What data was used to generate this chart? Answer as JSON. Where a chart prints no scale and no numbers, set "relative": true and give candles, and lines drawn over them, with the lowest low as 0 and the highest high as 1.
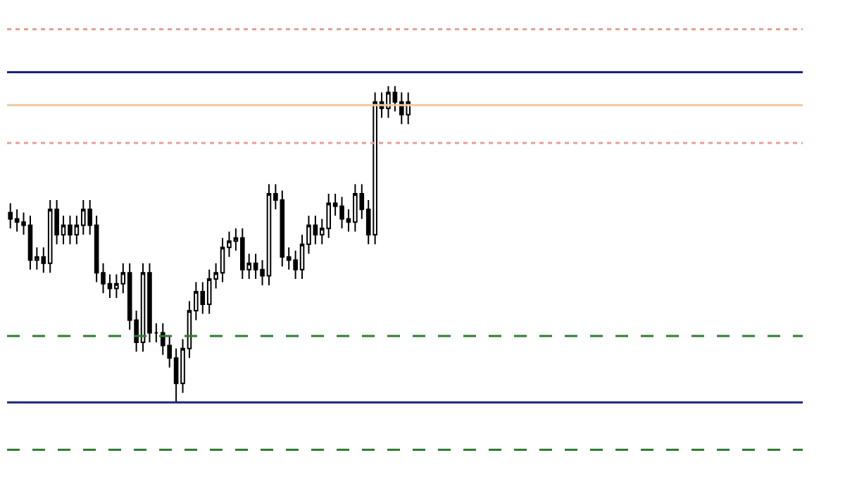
{
  "chart_data": {
    "type": "candlestick",
    "relative": true,
    "color": "#000000",
    "categories": [
      null,
      null,
      null,
      null,
      null,
      null,
      null,
      null,
      null,
      null,
      null,
      null,
      null,
      null,
      null,
      null,
      null,
      null,
      null,
      null,
      null,
      null,
      null,
      null,
      null,
      null,
      null,
      null,
      null,
      null,
      null,
      null,
      null,
      null,
      null,
      null,
      null,
      null,
      null,
      null,
      null,
      null,
      null,
      null,
      null,
      null,
      null,
      null,
      null,
      null,
      null,
      null,
      null,
      null,
      null,
      null,
      null,
      null,
      null,
      null,
      null,
      null,
      null,
      null,
      null,
      null,
      null,
      null,
      null,
      null,
      null,
      null,
      null,
      null,
      null,
      null,
      null,
      null,
      null,
      null,
      null,
      null,
      null,
      null,
      null,
      null,
      null,
      null,
      null,
      null,
      null,
      null,
      null,
      null,
      null,
      null,
      null,
      null,
      null,
      null,
      null,
      null,
      null,
      null,
      null,
      null,
      null,
      null,
      null,
      null,
      null,
      null,
      null,
      null,
      null,
      null,
      null,
      null,
      null,
      null
    ],
    "ohlc": [
      [
        0.6,
        0.63,
        0.55,
        0.58
      ],
      [
        0.58,
        0.61,
        0.54,
        0.57
      ],
      [
        0.57,
        0.6,
        0.53,
        0.56
      ],
      [
        0.56,
        0.59,
        0.42,
        0.45
      ],
      [
        0.45,
        0.49,
        0.42,
        0.46
      ],
      [
        0.46,
        0.49,
        0.41,
        0.44
      ],
      [
        0.44,
        0.64,
        0.41,
        0.61
      ],
      [
        0.61,
        0.64,
        0.5,
        0.53
      ],
      [
        0.53,
        0.59,
        0.5,
        0.56
      ],
      [
        0.56,
        0.59,
        0.5,
        0.53
      ],
      [
        0.53,
        0.59,
        0.5,
        0.56
      ],
      [
        0.56,
        0.64,
        0.53,
        0.61
      ],
      [
        0.61,
        0.64,
        0.53,
        0.56
      ],
      [
        0.56,
        0.59,
        0.38,
        0.41
      ],
      [
        0.41,
        0.44,
        0.345,
        0.375
      ],
      [
        0.375,
        0.405,
        0.33,
        0.36
      ],
      [
        0.36,
        0.405,
        0.33,
        0.375
      ],
      [
        0.375,
        0.44,
        0.345,
        0.41
      ],
      [
        0.41,
        0.44,
        0.23,
        0.26
      ],
      [
        0.26,
        0.29,
        0.16,
        0.19
      ],
      [
        0.19,
        0.44,
        0.16,
        0.41
      ],
      [
        0.41,
        0.44,
        0.19,
        0.22
      ],
      [
        0.22,
        0.25,
        0.19,
        0.22
      ],
      [
        0.22,
        0.25,
        0.15,
        0.18
      ],
      [
        0.18,
        0.21,
        0.11,
        0.14
      ],
      [
        0.14,
        0.17,
        0,
        0.06
      ],
      [
        0.06,
        0.2,
        0.03,
        0.17
      ],
      [
        0.17,
        0.32,
        0.14,
        0.29
      ],
      [
        0.29,
        0.38,
        0.26,
        0.35
      ],
      [
        0.35,
        0.38,
        0.28,
        0.31
      ],
      [
        0.31,
        0.42,
        0.28,
        0.39
      ],
      [
        0.39,
        0.44,
        0.36,
        0.41
      ],
      [
        0.41,
        0.52,
        0.38,
        0.49
      ],
      [
        0.49,
        0.54,
        0.46,
        0.51
      ],
      [
        0.51,
        0.55,
        0.48,
        0.52
      ],
      [
        0.52,
        0.55,
        0.39,
        0.42
      ],
      [
        0.42,
        0.47,
        0.39,
        0.44
      ],
      [
        0.44,
        0.47,
        0.39,
        0.42
      ],
      [
        0.42,
        0.45,
        0.37,
        0.4
      ],
      [
        0.4,
        0.69,
        0.37,
        0.66
      ],
      [
        0.66,
        0.69,
        0.61,
        0.64
      ],
      [
        0.64,
        0.67,
        0.43,
        0.46
      ],
      [
        0.46,
        0.49,
        0.42,
        0.45
      ],
      [
        0.45,
        0.48,
        0.39,
        0.42
      ],
      [
        0.42,
        0.53,
        0.39,
        0.5
      ],
      [
        0.5,
        0.59,
        0.47,
        0.56
      ],
      [
        0.56,
        0.59,
        0.5,
        0.53
      ],
      [
        0.53,
        0.58,
        0.5,
        0.55
      ],
      [
        0.55,
        0.66,
        0.52,
        0.63
      ],
      [
        0.63,
        0.66,
        0.59,
        0.62
      ],
      [
        0.62,
        0.65,
        0.55,
        0.58
      ],
      [
        0.58,
        0.61,
        0.54,
        0.57
      ],
      [
        0.57,
        0.69,
        0.54,
        0.66
      ],
      [
        0.66,
        0.69,
        0.58,
        0.61
      ],
      [
        0.61,
        0.64,
        0.5,
        0.53
      ],
      [
        0.53,
        0.98,
        0.5,
        0.95
      ],
      [
        0.95,
        0.98,
        0.9,
        0.93
      ],
      [
        0.93,
        1,
        0.9,
        0.98
      ],
      [
        0.98,
        1,
        0.92,
        0.95
      ],
      [
        0.95,
        0.98,
        0.88,
        0.91
      ],
      [
        0.91,
        0.98,
        0.88,
        0.95
      ],
      null,
      null,
      null,
      null,
      null,
      null,
      null,
      null,
      null,
      null,
      null,
      null,
      null,
      null,
      null,
      null,
      null,
      null,
      null,
      null,
      null,
      null,
      null,
      null,
      null,
      null,
      null,
      null,
      null,
      null,
      null,
      null,
      null,
      null,
      null,
      null,
      null,
      null,
      null,
      null,
      null,
      null,
      null,
      null,
      null,
      null,
      null,
      null,
      null,
      null,
      null,
      null,
      null,
      null,
      null,
      null,
      null,
      null,
      null
    ],
    "ref_lines": [
      {
        "axis": "y",
        "value": 1.18,
        "color": "#e8a090",
        "line_style": "dotted"
      },
      {
        "axis": "y",
        "value": 1.044,
        "color": "#1a237e",
        "line_style": "solid"
      },
      {
        "axis": "y",
        "value": 0.94,
        "color": "#f0c8a0",
        "line_style": "solid"
      },
      {
        "axis": "y",
        "value": 0.82,
        "color": "#e8a090",
        "line_style": "dotted"
      },
      {
        "axis": "y",
        "value": 0.21,
        "color": "#2e7d32",
        "line_style": "dashed"
      },
      {
        "axis": "y",
        "value": 0,
        "color": "#1a237e",
        "line_style": "solid"
      },
      {
        "axis": "y",
        "value": -0.15,
        "color": "#2e7d32",
        "line_style": "dashed"
      }
    ]
  }
}
